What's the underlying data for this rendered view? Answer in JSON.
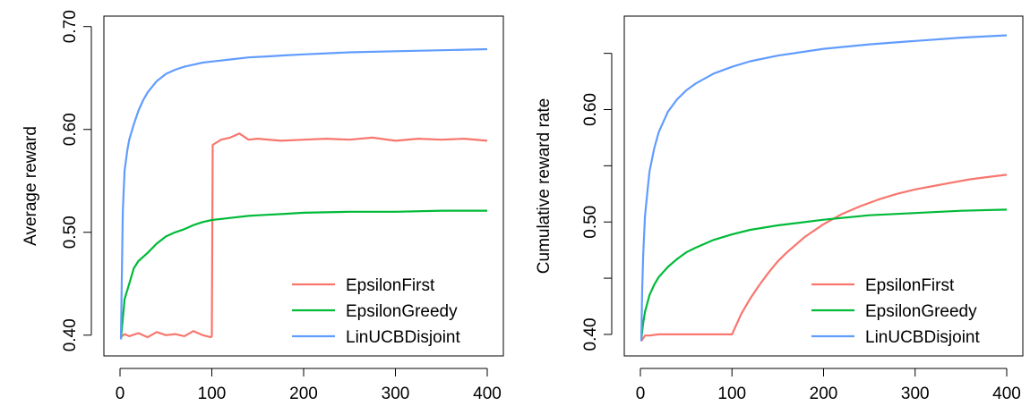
{
  "chart_data": [
    {
      "type": "line",
      "xlabel": "",
      "ylabel": "Average reward",
      "xlim": [
        0,
        400
      ],
      "ylim": [
        0.392,
        0.698
      ],
      "xticks": [
        0,
        100,
        200,
        300,
        400
      ],
      "yticks": [
        0.4,
        0.5,
        0.6,
        0.7
      ],
      "ytick_labels": [
        "0.40",
        "0.50",
        "0.60",
        "0.70"
      ],
      "legend_position": "bottom-right",
      "grid": false,
      "series": [
        {
          "name": "EpsilonFirst",
          "color": "#F8766D",
          "x": [
            1,
            5,
            10,
            20,
            30,
            40,
            50,
            60,
            70,
            80,
            90,
            99,
            100,
            101,
            110,
            120,
            130,
            140,
            150,
            175,
            200,
            225,
            250,
            275,
            300,
            325,
            350,
            375,
            400
          ],
          "y": [
            0.398,
            0.401,
            0.399,
            0.402,
            0.398,
            0.403,
            0.4,
            0.401,
            0.399,
            0.404,
            0.4,
            0.398,
            0.399,
            0.585,
            0.59,
            0.592,
            0.596,
            0.59,
            0.591,
            0.589,
            0.59,
            0.591,
            0.59,
            0.592,
            0.589,
            0.591,
            0.59,
            0.591,
            0.589
          ]
        },
        {
          "name": "EpsilonGreedy",
          "color": "#00BA38",
          "x": [
            1,
            5,
            10,
            15,
            20,
            30,
            40,
            50,
            60,
            70,
            80,
            90,
            100,
            120,
            140,
            160,
            180,
            200,
            250,
            300,
            350,
            400
          ],
          "y": [
            0.396,
            0.435,
            0.45,
            0.465,
            0.472,
            0.48,
            0.489,
            0.496,
            0.5,
            0.503,
            0.507,
            0.51,
            0.512,
            0.514,
            0.516,
            0.517,
            0.518,
            0.519,
            0.52,
            0.52,
            0.521,
            0.521
          ]
        },
        {
          "name": "LinUCBDisjoint",
          "color": "#619CFF",
          "x": [
            1,
            3,
            5,
            8,
            10,
            15,
            20,
            25,
            30,
            40,
            50,
            60,
            70,
            80,
            90,
            100,
            120,
            140,
            160,
            180,
            200,
            250,
            300,
            350,
            400
          ],
          "y": [
            0.396,
            0.52,
            0.56,
            0.58,
            0.59,
            0.605,
            0.618,
            0.628,
            0.636,
            0.647,
            0.654,
            0.658,
            0.661,
            0.663,
            0.665,
            0.666,
            0.668,
            0.67,
            0.671,
            0.672,
            0.673,
            0.675,
            0.676,
            0.677,
            0.678
          ]
        }
      ]
    },
    {
      "type": "line",
      "xlabel": "",
      "ylabel": "Cumulative reward rate",
      "xlim": [
        0,
        400
      ],
      "ylim": [
        0.392,
        0.672
      ],
      "xticks": [
        0,
        100,
        200,
        300,
        400
      ],
      "yticks": [
        0.4,
        0.45,
        0.5,
        0.55,
        0.6,
        0.65
      ],
      "ytick_labels": [
        "0.40",
        "",
        "0.50",
        "",
        "0.60",
        ""
      ],
      "legend_position": "bottom-right",
      "grid": false,
      "series": [
        {
          "name": "EpsilonFirst",
          "color": "#F8766D",
          "x": [
            1,
            5,
            10,
            20,
            40,
            60,
            80,
            100,
            110,
            120,
            130,
            140,
            150,
            160,
            180,
            200,
            220,
            240,
            260,
            280,
            300,
            320,
            340,
            360,
            380,
            400
          ],
          "y": [
            0.394,
            0.399,
            0.399,
            0.4,
            0.4,
            0.4,
            0.4,
            0.4,
            0.418,
            0.432,
            0.444,
            0.455,
            0.465,
            0.473,
            0.487,
            0.498,
            0.507,
            0.514,
            0.52,
            0.525,
            0.529,
            0.532,
            0.535,
            0.538,
            0.54,
            0.542
          ]
        },
        {
          "name": "EpsilonGreedy",
          "color": "#00BA38",
          "x": [
            1,
            3,
            5,
            10,
            15,
            20,
            30,
            40,
            50,
            60,
            80,
            100,
            120,
            150,
            200,
            250,
            300,
            350,
            400
          ],
          "y": [
            0.396,
            0.41,
            0.42,
            0.435,
            0.444,
            0.451,
            0.46,
            0.467,
            0.473,
            0.477,
            0.484,
            0.489,
            0.493,
            0.497,
            0.502,
            0.506,
            0.508,
            0.51,
            0.511
          ]
        },
        {
          "name": "LinUCBDisjoint",
          "color": "#619CFF",
          "x": [
            1,
            2,
            3,
            5,
            8,
            10,
            15,
            20,
            30,
            40,
            50,
            60,
            80,
            100,
            120,
            150,
            200,
            250,
            300,
            350,
            400
          ],
          "y": [
            0.394,
            0.44,
            0.47,
            0.505,
            0.53,
            0.545,
            0.565,
            0.58,
            0.598,
            0.609,
            0.617,
            0.623,
            0.632,
            0.638,
            0.643,
            0.648,
            0.654,
            0.658,
            0.661,
            0.664,
            0.666
          ]
        }
      ]
    }
  ]
}
